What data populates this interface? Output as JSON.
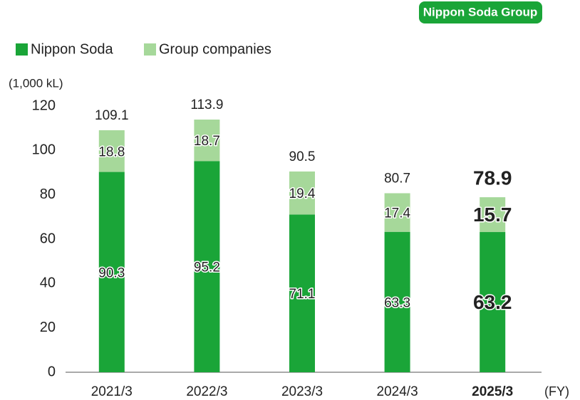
{
  "chart_data": {
    "type": "stacked_bar",
    "badge": "Nippon Soda Group",
    "ylabel": "(1,000 kL)",
    "xlabel": "(FY)",
    "categories": [
      "2021/3",
      "2022/3",
      "2023/3",
      "2024/3",
      "2025/3"
    ],
    "series": [
      {
        "name": "Nippon Soda",
        "color": "#1aa538",
        "values": [
          90.3,
          95.2,
          71.1,
          63.3,
          63.2
        ]
      },
      {
        "name": "Group companies",
        "color": "#a6d89a",
        "values": [
          18.8,
          18.7,
          19.4,
          17.4,
          15.7
        ]
      }
    ],
    "totals": [
      109.1,
      113.9,
      90.5,
      80.7,
      78.9
    ],
    "ylim": [
      0,
      120
    ],
    "yticks": [
      0,
      20,
      40,
      60,
      80,
      100,
      120
    ],
    "grid": false
  }
}
